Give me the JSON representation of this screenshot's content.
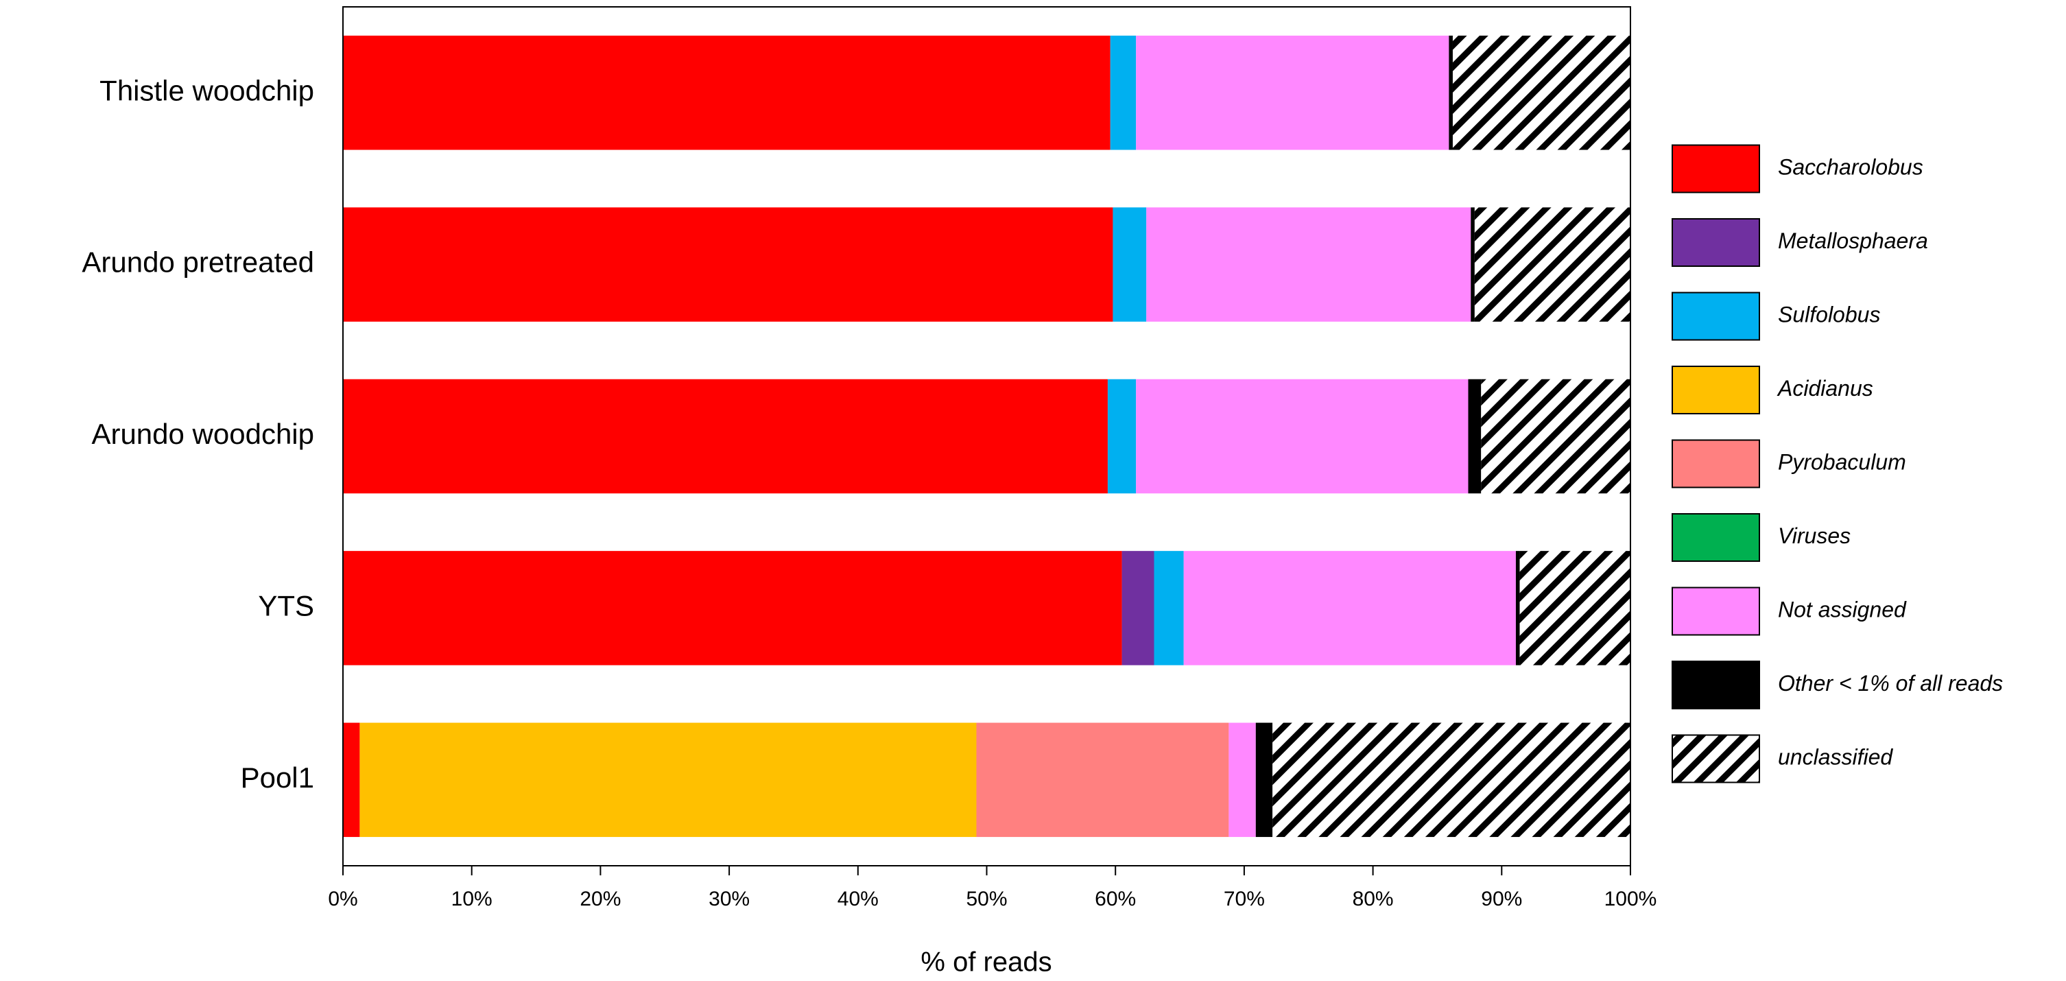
{
  "chart_data": {
    "type": "stacked_barh",
    "x_label": "% of reads",
    "categories": [
      "Thistle woodchip",
      "Arundo pretreated",
      "Arundo woodchip",
      "YTS",
      "Pool1"
    ],
    "series": [
      {
        "name": "Saccharolobus",
        "color": "#ff0000",
        "values": [
          59.6,
          59.8,
          59.4,
          60.5,
          1.3
        ]
      },
      {
        "name": "Metallosphaera",
        "color": "#7030a0",
        "values": [
          0,
          0,
          0,
          2.5,
          0
        ]
      },
      {
        "name": "Sulfolobus",
        "color": "#00b0f0",
        "values": [
          2.0,
          2.6,
          2.2,
          2.3,
          0
        ]
      },
      {
        "name": "Acidianus",
        "color": "#ffc000",
        "values": [
          0,
          0,
          0,
          0,
          47.9
        ]
      },
      {
        "name": "Pyrobaculum",
        "color": "#ff8080",
        "values": [
          0,
          0,
          0,
          0,
          19.6
        ]
      },
      {
        "name": "Viruses",
        "color": "#00b050",
        "values": [
          0,
          0,
          0,
          0,
          0
        ]
      },
      {
        "name": "Not assigned",
        "color": "#ff88ff",
        "values": [
          24.3,
          25.2,
          25.8,
          25.8,
          2.1
        ]
      },
      {
        "name": "Other < 1% of all reads",
        "color": "#000000",
        "values": [
          0.3,
          0.3,
          1.0,
          0.3,
          1.3
        ]
      },
      {
        "name": "unclassified",
        "color": "#000000",
        "hatch": true,
        "values": [
          13.8,
          12.1,
          11.6,
          8.6,
          27.8
        ]
      }
    ],
    "xlim": [
      0,
      100
    ],
    "xticks": [
      {
        "value": 0,
        "label": "0%"
      },
      {
        "value": 10,
        "label": "10%"
      },
      {
        "value": 20,
        "label": "20%"
      },
      {
        "value": 30,
        "label": "30%"
      },
      {
        "value": 40,
        "label": "40%"
      },
      {
        "value": 50,
        "label": "50%"
      },
      {
        "value": 60,
        "label": "60%"
      },
      {
        "value": 70,
        "label": "70%"
      },
      {
        "value": 80,
        "label": "80%"
      },
      {
        "value": 90,
        "label": "90%"
      },
      {
        "value": 100,
        "label": "100%"
      }
    ],
    "legend": "right"
  }
}
